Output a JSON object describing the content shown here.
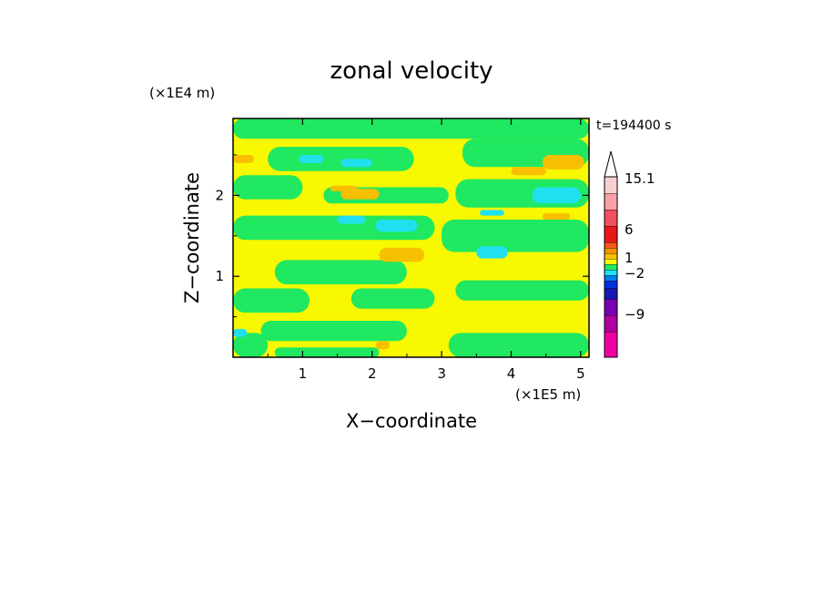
{
  "chart_data": {
    "type": "heatmap",
    "title": "zonal velocity",
    "xlabel": "X−coordinate",
    "ylabel": "Z−coordinate",
    "x_unit": "(×1E5 m)",
    "y_unit": "(×1E4 m)",
    "time_label": "t=194400 s",
    "xlim": [
      0,
      5.12
    ],
    "ylim": [
      0,
      2.95
    ],
    "x_ticks": [
      {
        "value": 1,
        "label": "1"
      },
      {
        "value": 2,
        "label": "2"
      },
      {
        "value": 3,
        "label": "3"
      },
      {
        "value": 4,
        "label": "4"
      },
      {
        "value": 5,
        "label": "5"
      }
    ],
    "y_ticks": [
      {
        "value": 1,
        "label": "1"
      },
      {
        "value": 2,
        "label": "2"
      }
    ],
    "colorbar": {
      "levels": [
        {
          "color": "#f000a0"
        },
        {
          "color": "#b000a0"
        },
        {
          "color": "#7800b0"
        },
        {
          "color": "#1818b0"
        },
        {
          "color": "#0030e0"
        },
        {
          "color": "#0080f0"
        },
        {
          "color": "#20e0f0"
        },
        {
          "color": "#20e860"
        },
        {
          "color": "#f8f800"
        },
        {
          "color": "#f8c000"
        },
        {
          "color": "#f89000"
        },
        {
          "color": "#f85818"
        },
        {
          "color": "#e81818"
        },
        {
          "color": "#f05060"
        },
        {
          "color": "#f8a0a8"
        },
        {
          "color": "#f8d0d0"
        }
      ],
      "labels": [
        {
          "text": "15.1"
        },
        {
          "text": "6"
        },
        {
          "text": "1"
        },
        {
          "text": "−2"
        },
        {
          "text": "−9"
        }
      ],
      "extend_max": true
    },
    "regions": [
      {
        "level": "green",
        "color": "#20e860",
        "x": [
          0,
          5.12
        ],
        "y": [
          2.7,
          2.95
        ]
      },
      {
        "level": "green",
        "color": "#20e860",
        "x": [
          0.5,
          2.6
        ],
        "y": [
          2.3,
          2.6
        ]
      },
      {
        "level": "green",
        "color": "#20e860",
        "x": [
          3.3,
          5.12
        ],
        "y": [
          2.35,
          2.7
        ]
      },
      {
        "level": "green",
        "color": "#20e860",
        "x": [
          0,
          1.0
        ],
        "y": [
          1.95,
          2.25
        ]
      },
      {
        "level": "green",
        "color": "#20e860",
        "x": [
          1.3,
          3.1
        ],
        "y": [
          1.9,
          2.1
        ]
      },
      {
        "level": "green",
        "color": "#20e860",
        "x": [
          3.2,
          5.12
        ],
        "y": [
          1.85,
          2.2
        ]
      },
      {
        "level": "green",
        "color": "#20e860",
        "x": [
          0,
          2.9
        ],
        "y": [
          1.45,
          1.75
        ]
      },
      {
        "level": "green",
        "color": "#20e860",
        "x": [
          3.0,
          5.12
        ],
        "y": [
          1.3,
          1.7
        ]
      },
      {
        "level": "green",
        "color": "#20e860",
        "x": [
          0.6,
          2.5
        ],
        "y": [
          0.9,
          1.2
        ]
      },
      {
        "level": "green",
        "color": "#20e860",
        "x": [
          0,
          1.1
        ],
        "y": [
          0.55,
          0.85
        ]
      },
      {
        "level": "green",
        "color": "#20e860",
        "x": [
          1.7,
          2.9
        ],
        "y": [
          0.6,
          0.85
        ]
      },
      {
        "level": "green",
        "color": "#20e860",
        "x": [
          3.2,
          5.12
        ],
        "y": [
          0.7,
          0.95
        ]
      },
      {
        "level": "green",
        "color": "#20e860",
        "x": [
          0.4,
          2.5
        ],
        "y": [
          0.2,
          0.45
        ]
      },
      {
        "level": "green",
        "color": "#20e860",
        "x": [
          3.1,
          5.12
        ],
        "y": [
          0.0,
          0.3
        ]
      },
      {
        "level": "green",
        "color": "#20e860",
        "x": [
          0,
          0.5
        ],
        "y": [
          0.0,
          0.3
        ]
      },
      {
        "level": "green",
        "color": "#20e860",
        "x": [
          0.6,
          2.1
        ],
        "y": [
          0.0,
          0.12
        ]
      },
      {
        "level": "orange",
        "color": "#f8c000",
        "x": [
          0,
          0.3
        ],
        "y": [
          2.4,
          2.5
        ]
      },
      {
        "level": "orange",
        "color": "#f8c000",
        "x": [
          4.45,
          5.05
        ],
        "y": [
          2.32,
          2.5
        ]
      },
      {
        "level": "orange",
        "color": "#f8c000",
        "x": [
          4.0,
          4.5
        ],
        "y": [
          2.25,
          2.35
        ]
      },
      {
        "level": "orange",
        "color": "#f8c000",
        "x": [
          1.4,
          1.8
        ],
        "y": [
          2.05,
          2.12
        ]
      },
      {
        "level": "orange",
        "color": "#f8c000",
        "x": [
          1.55,
          2.1
        ],
        "y": [
          1.95,
          2.08
        ]
      },
      {
        "level": "orange",
        "color": "#f8c000",
        "x": [
          4.45,
          4.85
        ],
        "y": [
          1.7,
          1.78
        ]
      },
      {
        "level": "orange",
        "color": "#f8c000",
        "x": [
          2.1,
          2.75
        ],
        "y": [
          1.18,
          1.35
        ]
      },
      {
        "level": "orange",
        "color": "#f8c000",
        "x": [
          2.05,
          2.25
        ],
        "y": [
          0.1,
          0.2
        ]
      },
      {
        "level": "cyan",
        "color": "#20e0f0",
        "x": [
          0.95,
          1.3
        ],
        "y": [
          2.4,
          2.5
        ]
      },
      {
        "level": "cyan",
        "color": "#20e0f0",
        "x": [
          1.55,
          2.0
        ],
        "y": [
          2.35,
          2.45
        ]
      },
      {
        "level": "cyan",
        "color": "#20e0f0",
        "x": [
          4.3,
          5.0
        ],
        "y": [
          1.9,
          2.1
        ]
      },
      {
        "level": "cyan",
        "color": "#20e0f0",
        "x": [
          3.55,
          3.9
        ],
        "y": [
          1.75,
          1.82
        ]
      },
      {
        "level": "cyan",
        "color": "#20e0f0",
        "x": [
          1.5,
          1.9
        ],
        "y": [
          1.65,
          1.75
        ]
      },
      {
        "level": "cyan",
        "color": "#20e0f0",
        "x": [
          2.05,
          2.65
        ],
        "y": [
          1.55,
          1.7
        ]
      },
      {
        "level": "cyan",
        "color": "#20e0f0",
        "x": [
          3.5,
          3.95
        ],
        "y": [
          1.22,
          1.37
        ]
      },
      {
        "level": "cyan",
        "color": "#20e0f0",
        "x": [
          0.0,
          0.2
        ],
        "y": [
          0.25,
          0.35
        ]
      }
    ]
  }
}
